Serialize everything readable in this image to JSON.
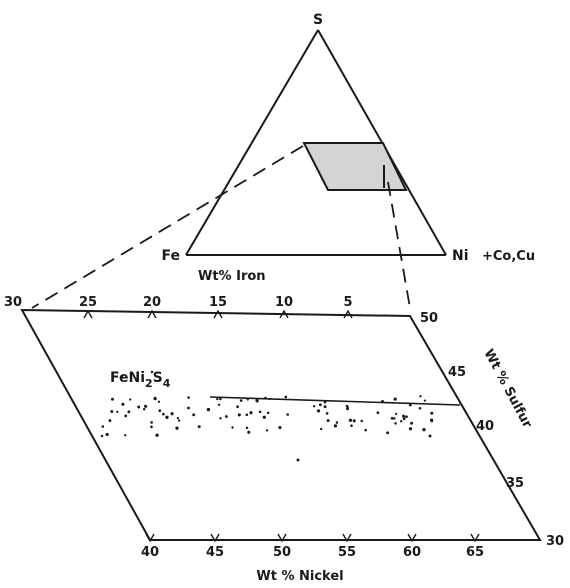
{
  "ternary": {
    "apex_top": "S",
    "apex_left": "Fe",
    "apex_right": "Ni",
    "apex_right_note": "+Co,Cu"
  },
  "axes": {
    "iron_label": "Wt% Iron",
    "nickel_label": "Wt % Nickel",
    "sulfur_label": "Wt % Sulfur",
    "iron_corner": "30",
    "iron_ticks": [
      "25",
      "20",
      "15",
      "10",
      "5"
    ],
    "nickel_ticks": [
      "40",
      "45",
      "50",
      "55",
      "60",
      "65"
    ],
    "sulfur_ticks": [
      "50",
      "45",
      "40",
      "35",
      "30"
    ]
  },
  "annotations": {
    "phase_label_main": "FeNi",
    "phase_label_sub1": "2",
    "phase_label_mid": "S",
    "phase_label_sub2": "4"
  },
  "colors": {
    "ink": "#1a1a1a",
    "shade": "#d4d4d4"
  }
}
